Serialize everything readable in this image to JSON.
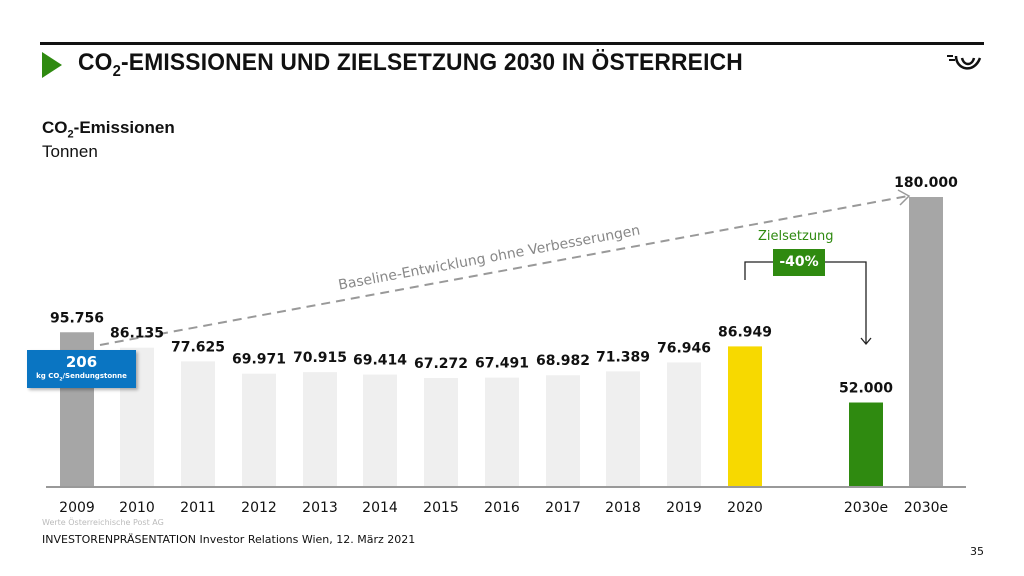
{
  "header": {
    "title_prefix": "CO",
    "title_sub": "2",
    "title_rest": "-EMISSIONEN UND ZIELSETZUNG 2030 IN ÖSTERREICH",
    "logo": "Österreichische Post posthorn logo"
  },
  "chart_data": {
    "type": "bar",
    "title_prefix": "CO",
    "title_sub": "2",
    "title_rest": "-Emissionen",
    "ylabel": "Tonnen",
    "categories": [
      "2009",
      "2010",
      "2011",
      "2012",
      "2013",
      "2014",
      "2015",
      "2016",
      "2017",
      "2018",
      "2019",
      "2020",
      "2030e",
      "2030e"
    ],
    "values": [
      95756,
      86135,
      77625,
      69971,
      70915,
      69414,
      67272,
      67491,
      68982,
      71389,
      76946,
      86949,
      52000,
      180000
    ],
    "value_labels": [
      "95.756",
      "86.135",
      "77.625",
      "69.971",
      "70.915",
      "69.414",
      "67.272",
      "67.491",
      "68.982",
      "71.389",
      "76.946",
      "86.949",
      "52.000",
      "180.000"
    ],
    "colors": [
      "#a6a6a6",
      "#efefef",
      "#efefef",
      "#efefef",
      "#efefef",
      "#efefef",
      "#efefef",
      "#efefef",
      "#efefef",
      "#efefef",
      "#efefef",
      "#f7d900",
      "#2f8a10",
      "#a6a6a6"
    ],
    "ylim": [
      0,
      180000
    ],
    "grid": false,
    "annotations": {
      "baseline_label": "Baseline-Entwicklung ohne Verbesserungen",
      "target_label": "Zielsetzung",
      "target_pct": "-40%",
      "kpi_value": "206",
      "kpi_unit_prefix": "kg CO",
      "kpi_unit_sub": "2",
      "kpi_unit_rest": "/Sendungstonne"
    }
  },
  "footer": {
    "source": "Werte Österreichische Post AG",
    "text": "INVESTORENPRÄSENTATION  Investor Relations Wien, 12. März 2021",
    "page": "35"
  }
}
